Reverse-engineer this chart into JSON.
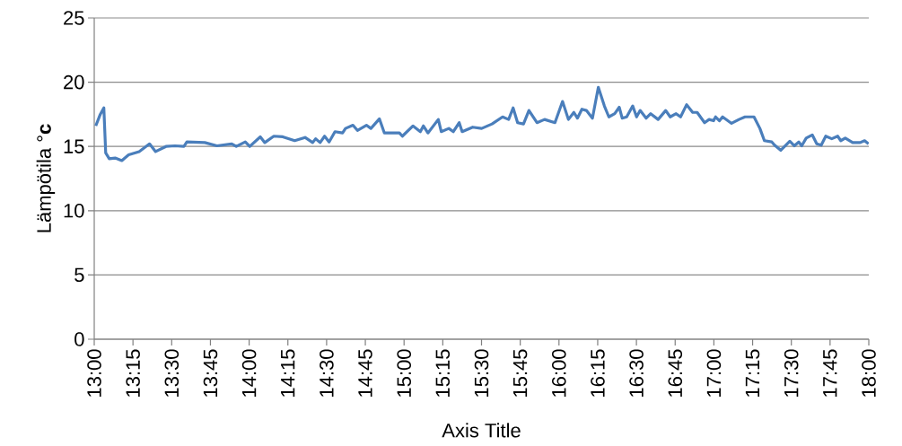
{
  "chart_data": {
    "type": "line",
    "xlabel": "Axis Title",
    "ylabel": "Lämpötila °**c**",
    "grid": "y",
    "xlim": [
      13,
      18
    ],
    "ylim": [
      0,
      25
    ],
    "yticks": [
      0,
      5,
      10,
      15,
      20,
      25
    ],
    "xticks": [
      {
        "value": 13,
        "label": "13:00"
      },
      {
        "value": 13.25,
        "label": "13:15"
      },
      {
        "value": 13.5,
        "label": "13:30"
      },
      {
        "value": 13.75,
        "label": "13:45"
      },
      {
        "value": 14,
        "label": "14:00"
      },
      {
        "value": 14.25,
        "label": "14:15"
      },
      {
        "value": 14.5,
        "label": "14:30"
      },
      {
        "value": 14.75,
        "label": "14:45"
      },
      {
        "value": 15,
        "label": "15:00"
      },
      {
        "value": 15.25,
        "label": "15:15"
      },
      {
        "value": 15.5,
        "label": "15:30"
      },
      {
        "value": 15.75,
        "label": "15:45"
      },
      {
        "value": 16,
        "label": "16:00"
      },
      {
        "value": 16.25,
        "label": "16:15"
      },
      {
        "value": 16.5,
        "label": "16:30"
      },
      {
        "value": 16.75,
        "label": "16:45"
      },
      {
        "value": 17,
        "label": "17:00"
      },
      {
        "value": 17.25,
        "label": "17:15"
      },
      {
        "value": 17.5,
        "label": "17:30"
      },
      {
        "value": 17.75,
        "label": "17:45"
      },
      {
        "value": 18,
        "label": "18:00"
      }
    ],
    "series": [
      {
        "color": "#4a7ebb",
        "x": [
          13.01,
          13.039,
          13.062,
          13.074,
          13.097,
          13.135,
          13.178,
          13.222,
          13.29,
          13.357,
          13.396,
          13.463,
          13.521,
          13.579,
          13.598,
          13.714,
          13.792,
          13.888,
          13.917,
          13.975,
          14.004,
          14.072,
          14.101,
          14.159,
          14.217,
          14.294,
          14.361,
          14.41,
          14.429,
          14.458,
          14.487,
          14.516,
          14.554,
          14.603,
          14.622,
          14.67,
          14.699,
          14.757,
          14.786,
          14.841,
          14.873,
          14.97,
          14.989,
          15.057,
          15.105,
          15.125,
          15.154,
          15.221,
          15.24,
          15.289,
          15.318,
          15.356,
          15.375,
          15.443,
          15.501,
          15.568,
          15.636,
          15.675,
          15.704,
          15.733,
          15.771,
          15.806,
          15.858,
          15.907,
          15.974,
          16.023,
          16.061,
          16.096,
          16.119,
          16.148,
          16.177,
          16.216,
          16.254,
          16.293,
          16.322,
          16.36,
          16.389,
          16.408,
          16.437,
          16.476,
          16.501,
          16.524,
          16.563,
          16.592,
          16.64,
          16.689,
          16.718,
          16.756,
          16.785,
          16.824,
          16.863,
          16.892,
          16.94,
          16.969,
          16.998,
          17.011,
          17.036,
          17.056,
          17.114,
          17.162,
          17.201,
          17.259,
          17.297,
          17.326,
          17.374,
          17.392,
          17.432,
          17.49,
          17.519,
          17.548,
          17.567,
          17.596,
          17.635,
          17.664,
          17.693,
          17.722,
          17.761,
          17.799,
          17.819,
          17.848,
          17.896,
          17.944,
          17.973,
          17.998
        ],
        "values": [
          16.6,
          17.5,
          18.0,
          14.5,
          14.05,
          14.1,
          13.9,
          14.35,
          14.6,
          15.2,
          14.6,
          15.0,
          15.05,
          15.0,
          15.35,
          15.3,
          15.05,
          15.2,
          15.0,
          15.35,
          15.0,
          15.75,
          15.3,
          15.8,
          15.75,
          15.45,
          15.7,
          15.3,
          15.6,
          15.3,
          15.8,
          15.35,
          16.15,
          16.05,
          16.4,
          16.65,
          16.25,
          16.65,
          16.4,
          17.15,
          16.05,
          16.05,
          15.8,
          16.6,
          16.15,
          16.6,
          16.05,
          17.1,
          16.15,
          16.4,
          16.15,
          16.85,
          16.15,
          16.5,
          16.4,
          16.75,
          17.3,
          17.1,
          18.0,
          16.85,
          16.75,
          17.8,
          16.85,
          17.1,
          16.85,
          18.5,
          17.1,
          17.65,
          17.2,
          17.9,
          17.8,
          17.2,
          19.6,
          18.15,
          17.3,
          17.55,
          18.05,
          17.2,
          17.3,
          18.15,
          17.3,
          17.8,
          17.2,
          17.55,
          17.1,
          17.8,
          17.3,
          17.55,
          17.3,
          18.25,
          17.65,
          17.65,
          16.85,
          17.1,
          17.0,
          17.3,
          17.0,
          17.3,
          16.8,
          17.1,
          17.3,
          17.3,
          16.4,
          15.45,
          15.35,
          15.1,
          14.7,
          15.4,
          15.05,
          15.35,
          15.05,
          15.65,
          15.9,
          15.2,
          15.1,
          15.8,
          15.6,
          15.8,
          15.45,
          15.65,
          15.3,
          15.3,
          15.45,
          15.2
        ]
      }
    ]
  }
}
